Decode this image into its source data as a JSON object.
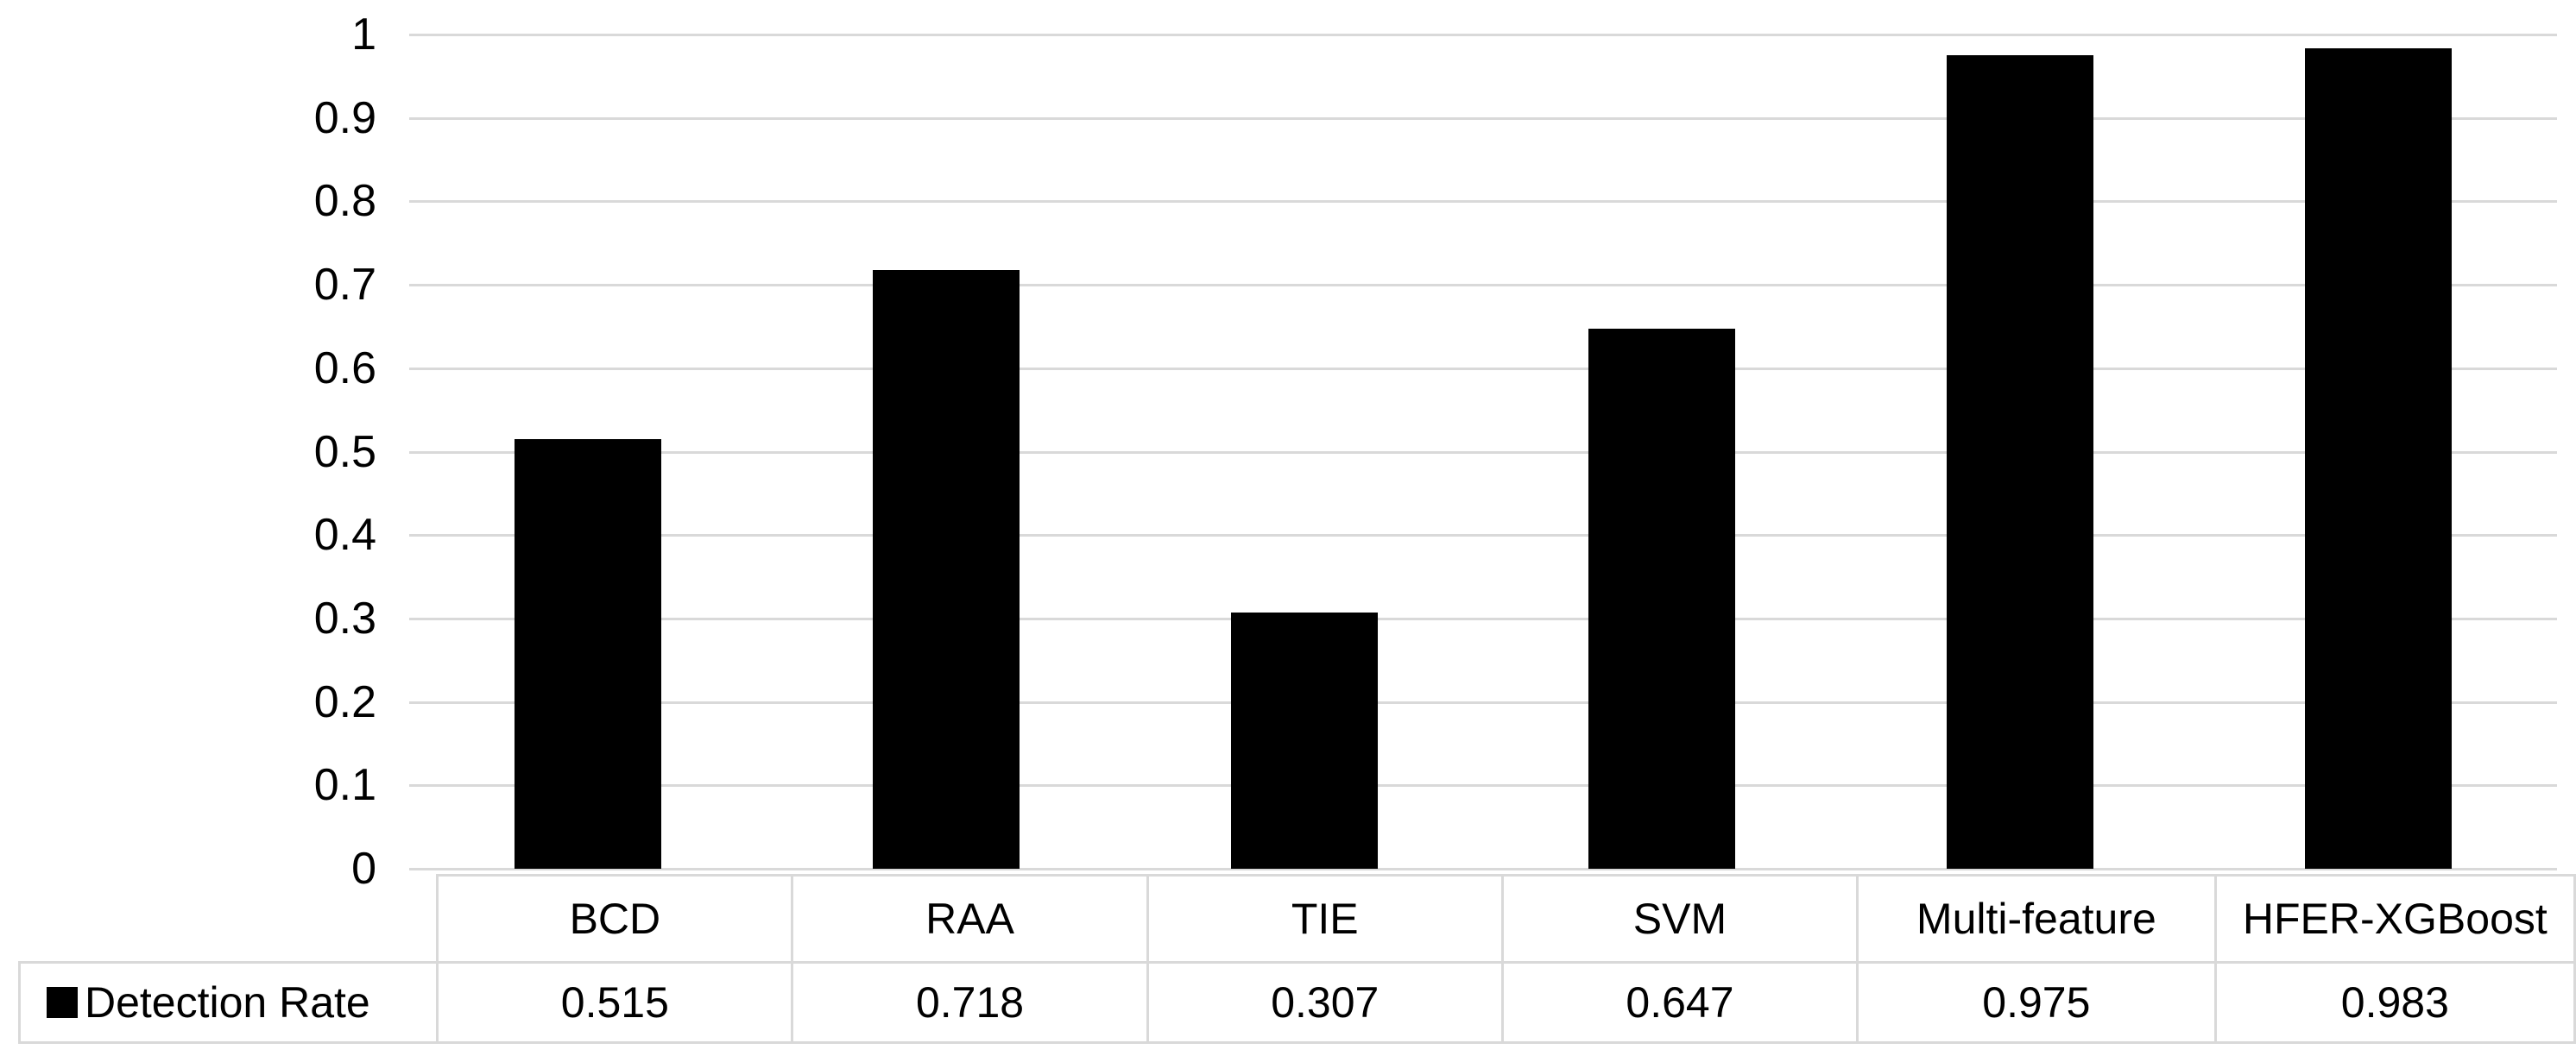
{
  "chart_data": {
    "type": "bar",
    "title": "",
    "xlabel": "",
    "ylabel": "",
    "categories": [
      "BCD",
      "RAA",
      "TIE",
      "SVM",
      "Multi-feature",
      "HFER-XGBoost"
    ],
    "series": [
      {
        "name": "Detection Rate",
        "values": [
          0.515,
          0.718,
          0.307,
          0.647,
          0.975,
          0.983
        ],
        "value_labels": [
          "0.515",
          "0.718",
          "0.307",
          "0.647",
          "0.975",
          "0.983"
        ]
      }
    ],
    "ylim": [
      0,
      1
    ],
    "ytick_labels": [
      "0",
      "0.1",
      "0.2",
      "0.3",
      "0.4",
      "0.5",
      "0.6",
      "0.7",
      "0.8",
      "0.9",
      "1"
    ],
    "grid": true,
    "legend_position": "table-left",
    "bar_color": "#000000",
    "gridline_color": "#d9d9d9",
    "table_border_color": "#d9d9d9",
    "text_color": "#000000",
    "background_color": "#ffffff"
  }
}
